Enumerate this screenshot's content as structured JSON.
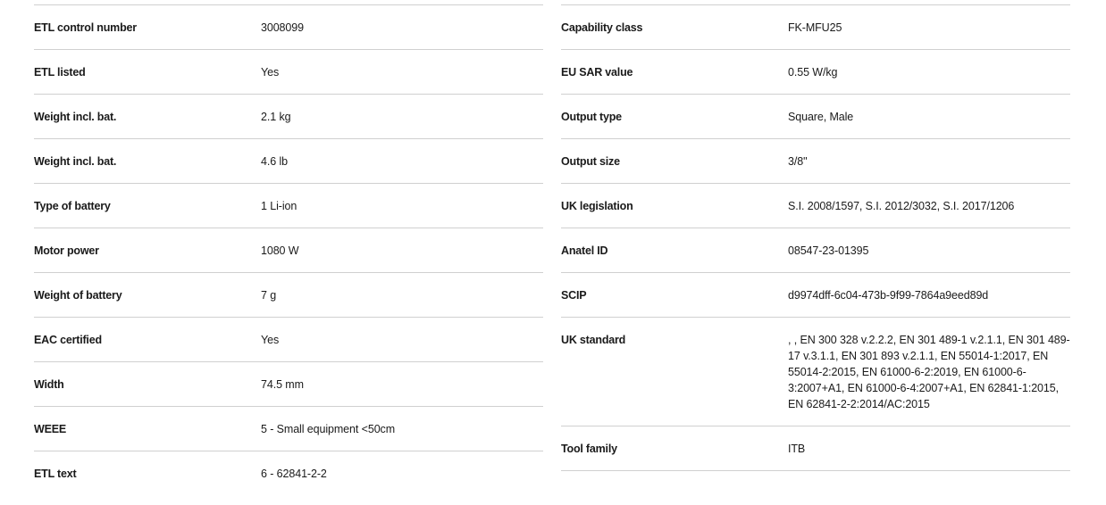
{
  "left": [
    {
      "label": "ETL control number",
      "value": "3008099"
    },
    {
      "label": "ETL listed",
      "value": "Yes"
    },
    {
      "label": "Weight incl. bat.",
      "value": "2.1 kg"
    },
    {
      "label": "Weight incl. bat.",
      "value": "4.6 lb"
    },
    {
      "label": "Type of battery",
      "value": "1 Li-ion"
    },
    {
      "label": "Motor power",
      "value": "1080 W"
    },
    {
      "label": "Weight of battery",
      "value": "7 g"
    },
    {
      "label": "EAC certified",
      "value": "Yes"
    },
    {
      "label": "Width",
      "value": "74.5 mm"
    },
    {
      "label": "WEEE",
      "value": "5 - Small equipment <50cm"
    },
    {
      "label": "ETL text",
      "value": "6 - 62841-2-2"
    }
  ],
  "right": [
    {
      "label": "Capability class",
      "value": "FK-MFU25"
    },
    {
      "label": "EU SAR value",
      "value": "0.55 W/kg"
    },
    {
      "label": "Output type",
      "value": "Square, Male"
    },
    {
      "label": "Output size",
      "value": "3/8\""
    },
    {
      "label": "UK legislation",
      "value": "S.I. 2008/1597, S.I. 2012/3032, S.I. 2017/1206"
    },
    {
      "label": "Anatel ID",
      "value": "08547-23-01395"
    },
    {
      "label": "SCIP",
      "value": "d9974dff-6c04-473b-9f99-7864a9eed89d"
    },
    {
      "label": "UK standard",
      "value": ", , EN 300 328 v.2.2.2, EN 301 489-1 v.2.1.1, EN 301 489-17 v.3.1.1, EN 301 893 v.2.1.1, EN 55014-1:2017, EN 55014-2:2015, EN 61000-6-2:2019, EN 61000-6-3:2007+A1, EN 61000-6-4:2007+A1, EN 62841-1:2015, EN 62841-2-2:2014/AC:2015"
    },
    {
      "label": "Tool family",
      "value": "ITB"
    }
  ]
}
